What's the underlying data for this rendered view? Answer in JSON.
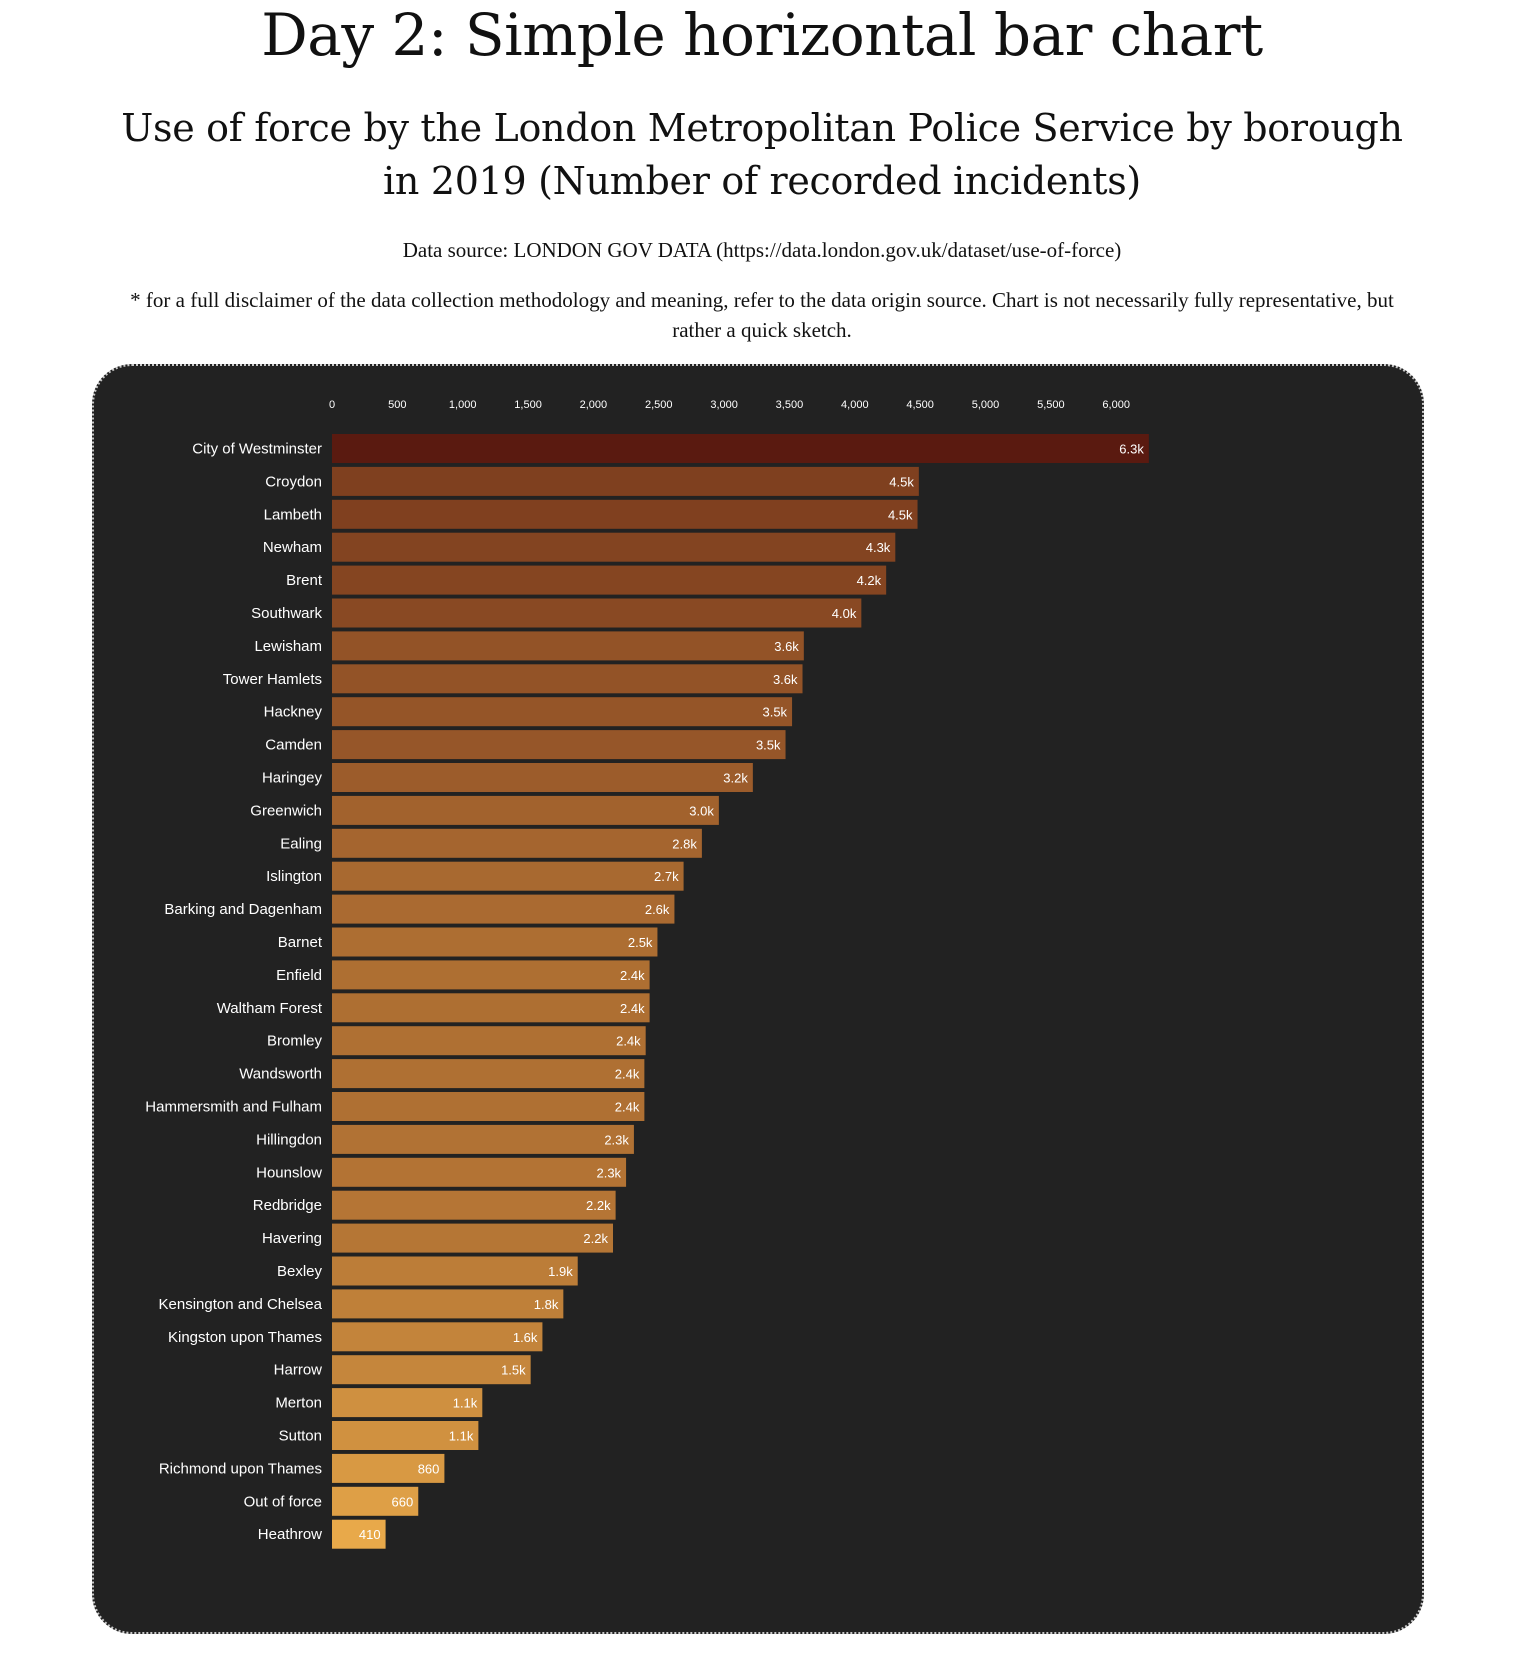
{
  "page": {
    "heading": "Day 2: Simple horizontal bar chart",
    "chart_title": "Use of force by the London Metropolitan Police Service by borough in 2019 (Number of recorded incidents)",
    "data_source": "Data source: LONDON GOV DATA (https://data.london.gov.uk/dataset/use-of-force)",
    "disclaimer": "* for a full disclaimer of the data collection methodology and meaning, refer to the data origin source. Chart is not necessarily fully representative, but rather a quick sketch."
  },
  "colors": {
    "panel_background": "#222222",
    "bar_color_high": "#5a1a10",
    "bar_color_low": "#e8a94a",
    "text": "#ffffff"
  },
  "chart_data": {
    "type": "bar",
    "orientation": "horizontal",
    "title": "Use of force by the London Metropolitan Police Service by borough in 2019 (Number of recorded incidents)",
    "xlim": [
      0,
      6300
    ],
    "x_ticks": [
      0,
      500,
      1000,
      1500,
      2000,
      2500,
      3000,
      3500,
      4000,
      4500,
      5000,
      5500,
      6000
    ],
    "x_tick_labels": [
      "0",
      "500",
      "1,000",
      "1,500",
      "2,000",
      "2,500",
      "3,000",
      "3,500",
      "4,000",
      "4,500",
      "5,000",
      "5,500",
      "6,000"
    ],
    "grid": false,
    "categories": [
      "City of Westminster",
      "Croydon",
      "Lambeth",
      "Newham",
      "Brent",
      "Southwark",
      "Lewisham",
      "Tower Hamlets",
      "Hackney",
      "Camden",
      "Haringey",
      "Greenwich",
      "Ealing",
      "Islington",
      "Barking and Dagenham",
      "Barnet",
      "Enfield",
      "Waltham Forest",
      "Bromley",
      "Wandsworth",
      "Hammersmith and Fulham",
      "Hillingdon",
      "Hounslow",
      "Redbridge",
      "Havering",
      "Bexley",
      "Kensington and Chelsea",
      "Kingston upon Thames",
      "Harrow",
      "Merton",
      "Sutton",
      "Richmond upon Thames",
      "Out of force",
      "Heathrow"
    ],
    "values": [
      6250,
      4490,
      4480,
      4310,
      4240,
      4050,
      3610,
      3600,
      3520,
      3470,
      3220,
      2960,
      2830,
      2690,
      2620,
      2490,
      2430,
      2430,
      2400,
      2390,
      2390,
      2310,
      2250,
      2170,
      2150,
      1880,
      1770,
      1610,
      1520,
      1150,
      1120,
      860,
      660,
      410
    ],
    "value_labels": [
      "6.3k",
      "4.5k",
      "4.5k",
      "4.3k",
      "4.2k",
      "4.0k",
      "3.6k",
      "3.6k",
      "3.5k",
      "3.5k",
      "3.2k",
      "3.0k",
      "2.8k",
      "2.7k",
      "2.6k",
      "2.5k",
      "2.4k",
      "2.4k",
      "2.4k",
      "2.4k",
      "2.4k",
      "2.3k",
      "2.3k",
      "2.2k",
      "2.2k",
      "1.9k",
      "1.8k",
      "1.6k",
      "1.5k",
      "1.1k",
      "1.1k",
      "860",
      "660",
      "410"
    ]
  }
}
